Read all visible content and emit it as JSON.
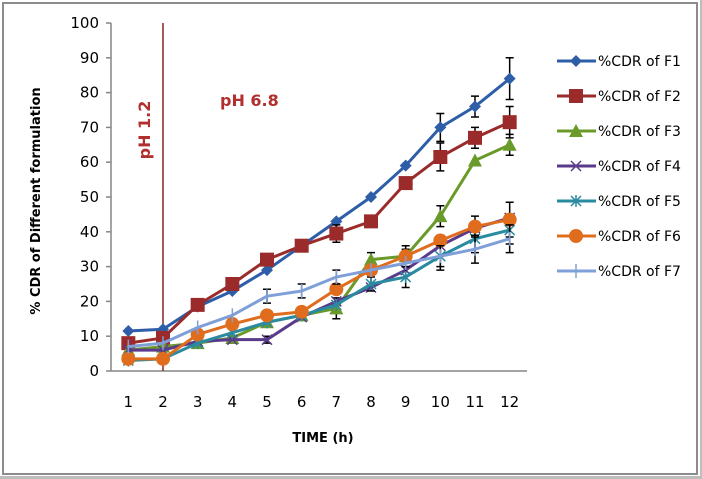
{
  "chart_data": {
    "type": "line",
    "title": "",
    "xlabel": "TIME (h)",
    "ylabel": "% CDR of Different formulation",
    "categories": [
      "1",
      "2",
      "3",
      "4",
      "5",
      "6",
      "7",
      "8",
      "9",
      "10",
      "11",
      "12"
    ],
    "ylim": [
      0,
      100
    ],
    "yticks": [
      0,
      10,
      20,
      30,
      40,
      50,
      60,
      70,
      80,
      90,
      100
    ],
    "grid": false,
    "legend_position": "right",
    "annotations": [
      {
        "text": "pH 1.2",
        "orientation": "vertical",
        "at_category": "2",
        "side": "left"
      },
      {
        "text": "pH 6.8",
        "orientation": "horizontal",
        "at_category": "2",
        "side": "right"
      }
    ],
    "divider_at_category": "2",
    "divider_color": "#8b2323",
    "series": [
      {
        "name": "%CDR of F1",
        "color": "#2e5ea8",
        "marker": "diamond",
        "values": [
          11.5,
          12,
          18.5,
          23,
          29,
          36,
          43,
          50,
          59,
          70,
          76,
          84
        ],
        "errors": [
          0,
          0,
          0,
          0,
          0,
          0,
          0,
          0,
          0,
          4,
          3,
          6
        ]
      },
      {
        "name": "%CDR of F2",
        "color": "#9b2b2b",
        "marker": "square",
        "values": [
          8,
          9.5,
          19,
          25,
          32,
          36,
          39.5,
          43,
          54,
          61.5,
          67,
          71.5
        ],
        "errors": [
          0,
          0,
          0,
          0,
          0,
          0,
          2.5,
          0,
          0,
          4,
          3,
          4.5
        ]
      },
      {
        "name": "%CDR of F3",
        "color": "#6a9a2a",
        "marker": "triangle",
        "values": [
          6,
          7,
          8,
          9.5,
          14,
          16,
          18,
          32,
          33,
          44.5,
          60.5,
          65
        ],
        "errors": [
          0,
          0,
          0,
          0,
          0,
          0,
          3,
          2,
          2,
          3,
          0,
          3
        ]
      },
      {
        "name": "%CDR of F4",
        "color": "#5a3a8a",
        "marker": "x",
        "values": [
          6,
          6,
          8.5,
          9,
          9,
          15.5,
          20,
          24,
          29,
          36,
          41,
          44
        ],
        "errors": [
          0,
          0,
          0,
          0,
          1,
          0,
          0,
          0,
          0,
          0,
          0,
          0
        ]
      },
      {
        "name": "%CDR of F5",
        "color": "#2a8aa0",
        "marker": "star",
        "values": [
          3,
          3.5,
          8,
          11,
          14,
          16,
          19,
          25,
          27,
          33,
          38,
          40.5
        ],
        "errors": [
          0,
          0,
          0,
          0,
          0,
          0,
          0,
          2,
          3,
          4,
          4,
          4
        ]
      },
      {
        "name": "%CDR of F6",
        "color": "#e06c1e",
        "marker": "circle",
        "values": [
          3.5,
          3.5,
          10.5,
          13.5,
          16,
          17,
          23.5,
          29,
          33,
          37.5,
          41.5,
          43.5
        ],
        "errors": [
          0,
          0,
          0,
          0,
          0,
          0,
          0,
          0,
          3,
          0,
          3,
          5
        ]
      },
      {
        "name": "%CDR of F7",
        "color": "#7f9fd8",
        "marker": "plus",
        "values": [
          7,
          8,
          12.5,
          16,
          21.5,
          23,
          27,
          29,
          31,
          33,
          35,
          38
        ],
        "errors": [
          0,
          0,
          0,
          0,
          2,
          2,
          2,
          0,
          0,
          3,
          4,
          4
        ]
      }
    ]
  }
}
